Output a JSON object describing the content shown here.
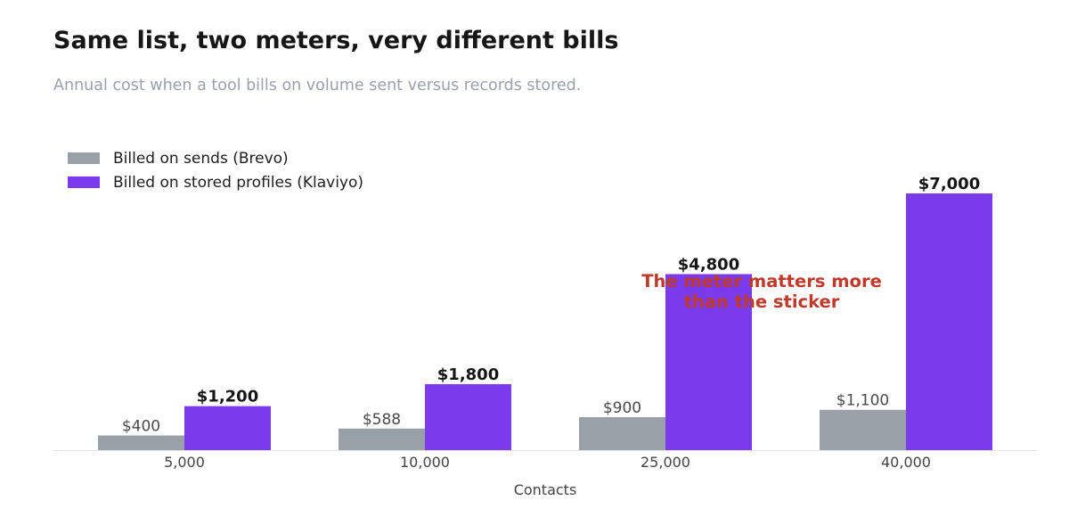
{
  "chart_data": {
    "type": "bar",
    "title": "Same list, two meters, very different bills",
    "subtitle": "Annual cost when a tool bills on volume sent versus records stored.",
    "xlabel": "Contacts",
    "ylabel": "",
    "categories": [
      "5,000",
      "10,000",
      "25,000",
      "40,000"
    ],
    "series": [
      {
        "name": "Billed on sends (Brevo)",
        "values": [
          400,
          588,
          900,
          1100
        ],
        "labels": [
          "$400",
          "$588",
          "$900",
          "$1,100"
        ],
        "color": "#9aa0a8"
      },
      {
        "name": "Billed on stored profiles (Klaviyo)",
        "values": [
          1200,
          1800,
          4800,
          7000
        ],
        "labels": [
          "$1,200",
          "$1,800",
          "$4,800",
          "$7,000"
        ],
        "color": "#7c3aed"
      }
    ],
    "ylim": [
      0,
      7000
    ],
    "grid": false,
    "legend_position": "top-left",
    "annotation": {
      "lines": [
        "The meter matters more",
        "than the sticker"
      ],
      "category": "25,000",
      "color": "#c0392b"
    },
    "axis_color": "#e6e6e6"
  }
}
